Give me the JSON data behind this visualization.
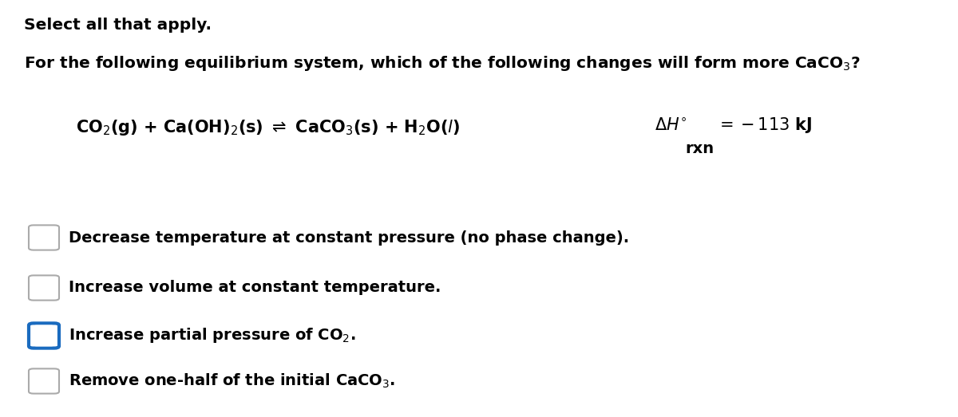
{
  "background_color": "#ffffff",
  "title_line1": "Select all that apply.",
  "question": "For the following equilibrium system, which of the following changes will form more CaCO$_3$?",
  "equation": "CO$_2$(g) + Ca(OH)$_2$(s) $\\rightleftharpoons$ CaCO$_3$(s) + H$_2$O($l$)",
  "delta_h": "$\\Delta H^{\\circ}$     $= -113$ kJ",
  "delta_h_sub": "rxn",
  "options": [
    {
      "text": "Decrease temperature at constant pressure (no phase change).",
      "checked": false
    },
    {
      "text": "Increase volume at constant temperature.",
      "checked": false
    },
    {
      "text": "Increase partial pressure of CO$_2$.",
      "checked": true
    },
    {
      "text": "Remove one-half of the initial CaCO$_3$.",
      "checked": false
    }
  ],
  "checkbox_color_unchecked": "#aaaaaa",
  "checkbox_color_checked": "#1a6bbf",
  "text_color": "#000000",
  "fontsize_title": 14.5,
  "fontsize_eq": 15,
  "fontsize_body": 14
}
